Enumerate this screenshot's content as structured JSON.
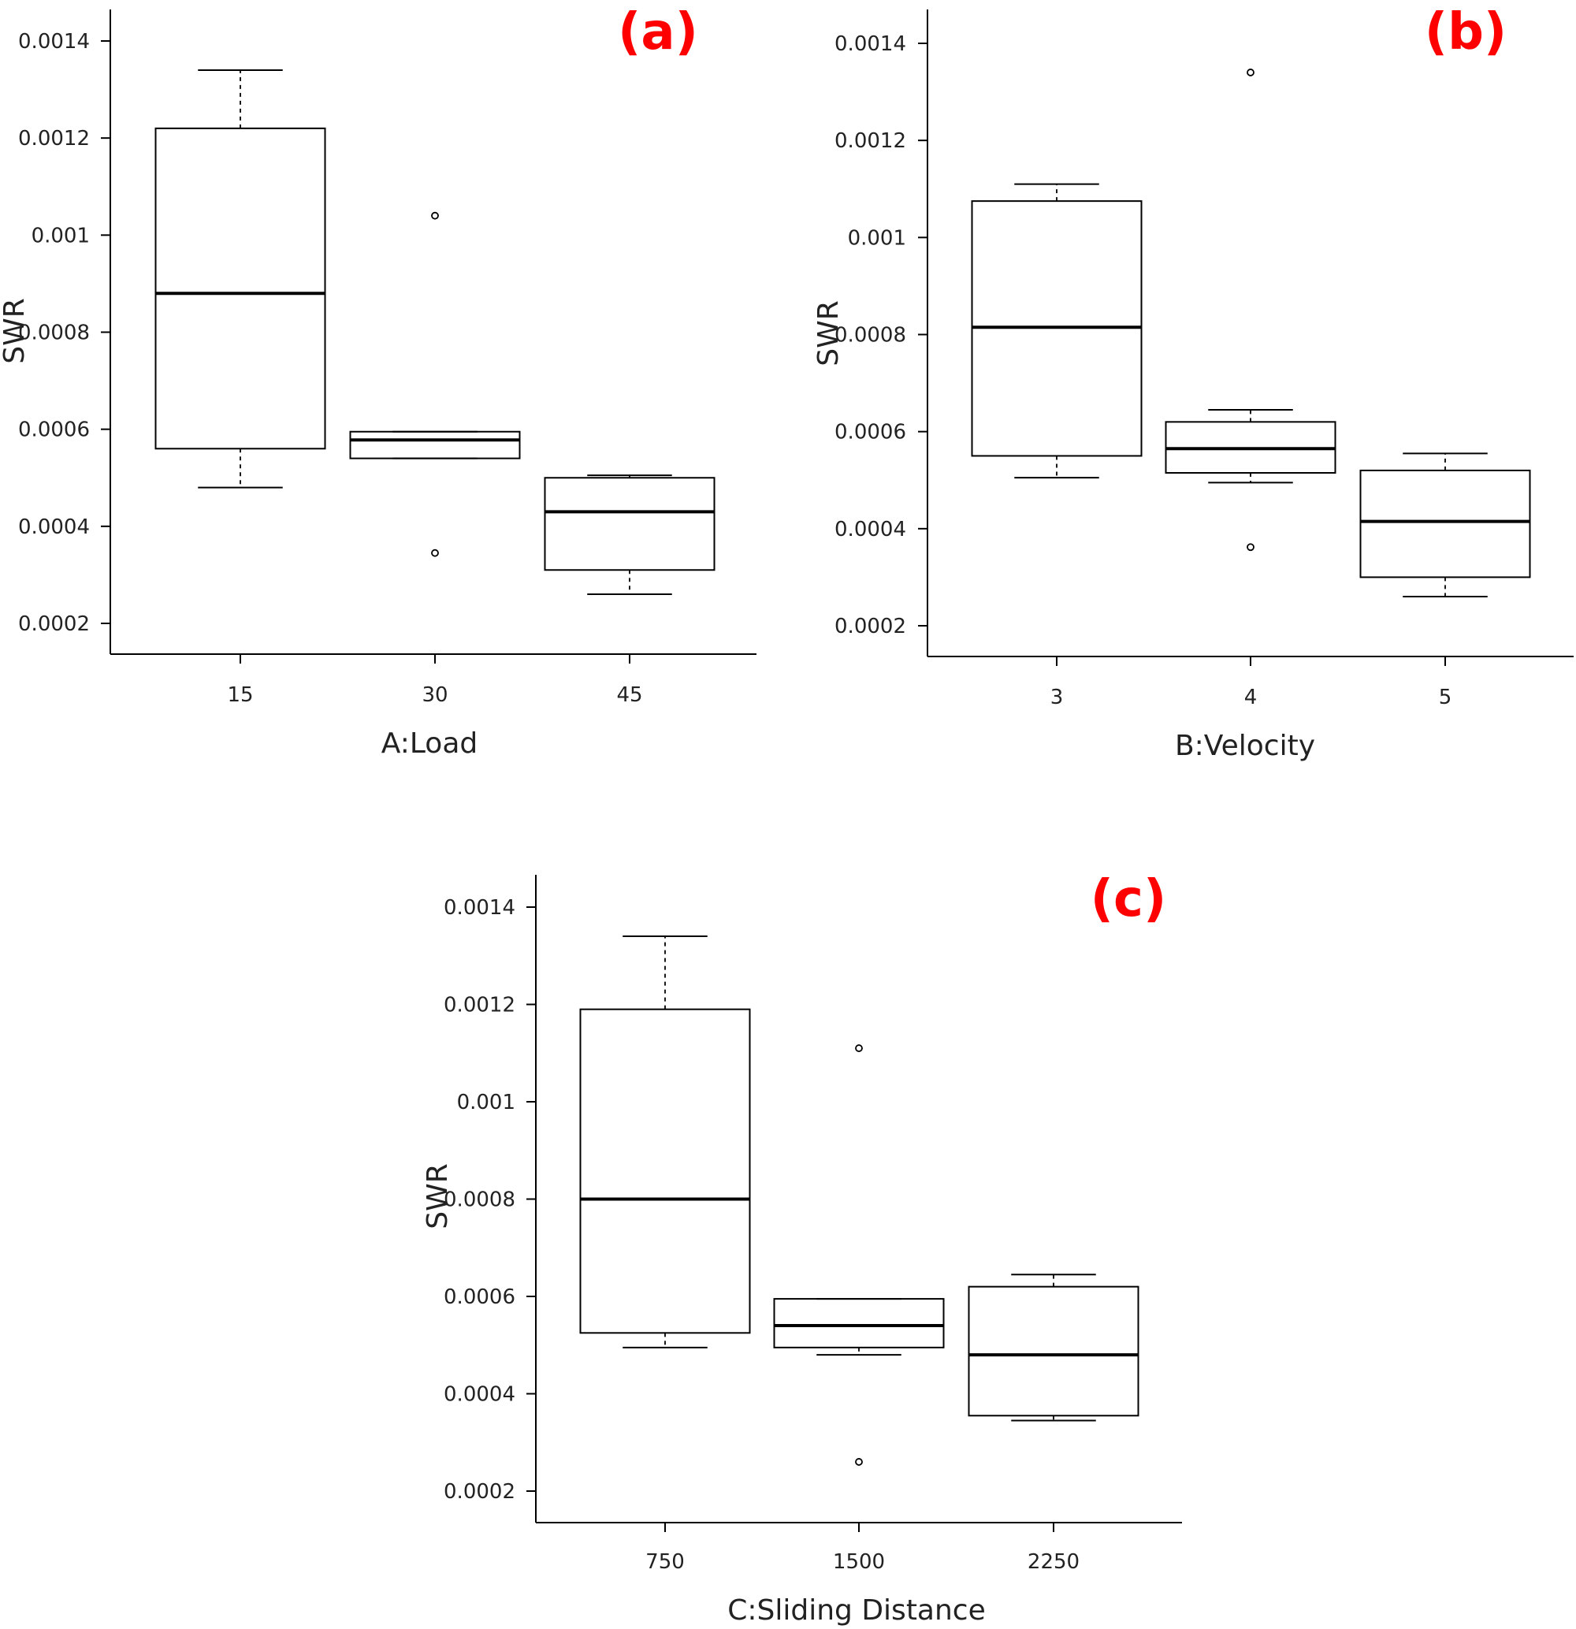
{
  "colors": {
    "panel_label": "#ff0000",
    "stroke": "#000000"
  },
  "chart_data": [
    {
      "type": "box",
      "panel": "(a)",
      "xlabel": "A:Load",
      "ylabel": "SWR",
      "ylim": [
        0.00014,
        0.00146
      ],
      "ytick_labels": [
        "0.0002",
        "0.0004",
        "0.0006",
        "0.0008",
        "0.001",
        "0.0012",
        "0.0014"
      ],
      "yticks": [
        0.0002,
        0.0004,
        0.0006,
        0.0008,
        0.001,
        0.0012,
        0.0014
      ],
      "categories": [
        "15",
        "30",
        "45"
      ],
      "boxes": [
        {
          "category": "15",
          "whisker_low": 0.00048,
          "q1": 0.00056,
          "median": 0.00088,
          "q3": 0.00122,
          "whisker_high": 0.00134,
          "outliers": []
        },
        {
          "category": "30",
          "whisker_low": 0.00054,
          "q1": 0.00054,
          "median": 0.000578,
          "q3": 0.000595,
          "whisker_high": 0.000595,
          "outliers": [
            0.00104,
            0.000345
          ]
        },
        {
          "category": "45",
          "whisker_low": 0.00026,
          "q1": 0.00031,
          "median": 0.00043,
          "q3": 0.0005,
          "whisker_high": 0.000505,
          "outliers": []
        }
      ]
    },
    {
      "type": "box",
      "panel": "(b)",
      "xlabel": "B:Velocity",
      "ylabel": "SWR",
      "ylim": [
        0.00014,
        0.00146
      ],
      "ytick_labels": [
        "0.0002",
        "0.0004",
        "0.0006",
        "0.0008",
        "0.001",
        "0.0012",
        "0.0014"
      ],
      "yticks": [
        0.0002,
        0.0004,
        0.0006,
        0.0008,
        0.001,
        0.0012,
        0.0014
      ],
      "categories": [
        "3",
        "4",
        "5"
      ],
      "boxes": [
        {
          "category": "3",
          "whisker_low": 0.000505,
          "q1": 0.00055,
          "median": 0.000815,
          "q3": 0.001075,
          "whisker_high": 0.00111,
          "outliers": []
        },
        {
          "category": "4",
          "whisker_low": 0.000495,
          "q1": 0.000515,
          "median": 0.000565,
          "q3": 0.00062,
          "whisker_high": 0.000645,
          "outliers": [
            0.00134,
            0.000362
          ]
        },
        {
          "category": "5",
          "whisker_low": 0.00026,
          "q1": 0.0003,
          "median": 0.000415,
          "q3": 0.00052,
          "whisker_high": 0.000555,
          "outliers": []
        }
      ]
    },
    {
      "type": "box",
      "panel": "(c)",
      "xlabel": "C:Sliding Distance",
      "ylabel": "SWR",
      "ylim": [
        0.00014,
        0.00146
      ],
      "ytick_labels": [
        "0.0002",
        "0.0004",
        "0.0006",
        "0.0008",
        "0.001",
        "0.0012",
        "0.0014"
      ],
      "yticks": [
        0.0002,
        0.0004,
        0.0006,
        0.0008,
        0.001,
        0.0012,
        0.0014
      ],
      "categories": [
        "750",
        "1500",
        "2250"
      ],
      "boxes": [
        {
          "category": "750",
          "whisker_low": 0.000495,
          "q1": 0.000525,
          "median": 0.0008,
          "q3": 0.00119,
          "whisker_high": 0.00134,
          "outliers": []
        },
        {
          "category": "1500",
          "whisker_low": 0.00048,
          "q1": 0.000495,
          "median": 0.00054,
          "q3": 0.000595,
          "whisker_high": 0.000595,
          "outliers": [
            0.00111,
            0.00026
          ]
        },
        {
          "category": "2250",
          "whisker_low": 0.000345,
          "q1": 0.000355,
          "median": 0.00048,
          "q3": 0.00062,
          "whisker_high": 0.000645,
          "outliers": []
        }
      ]
    }
  ]
}
